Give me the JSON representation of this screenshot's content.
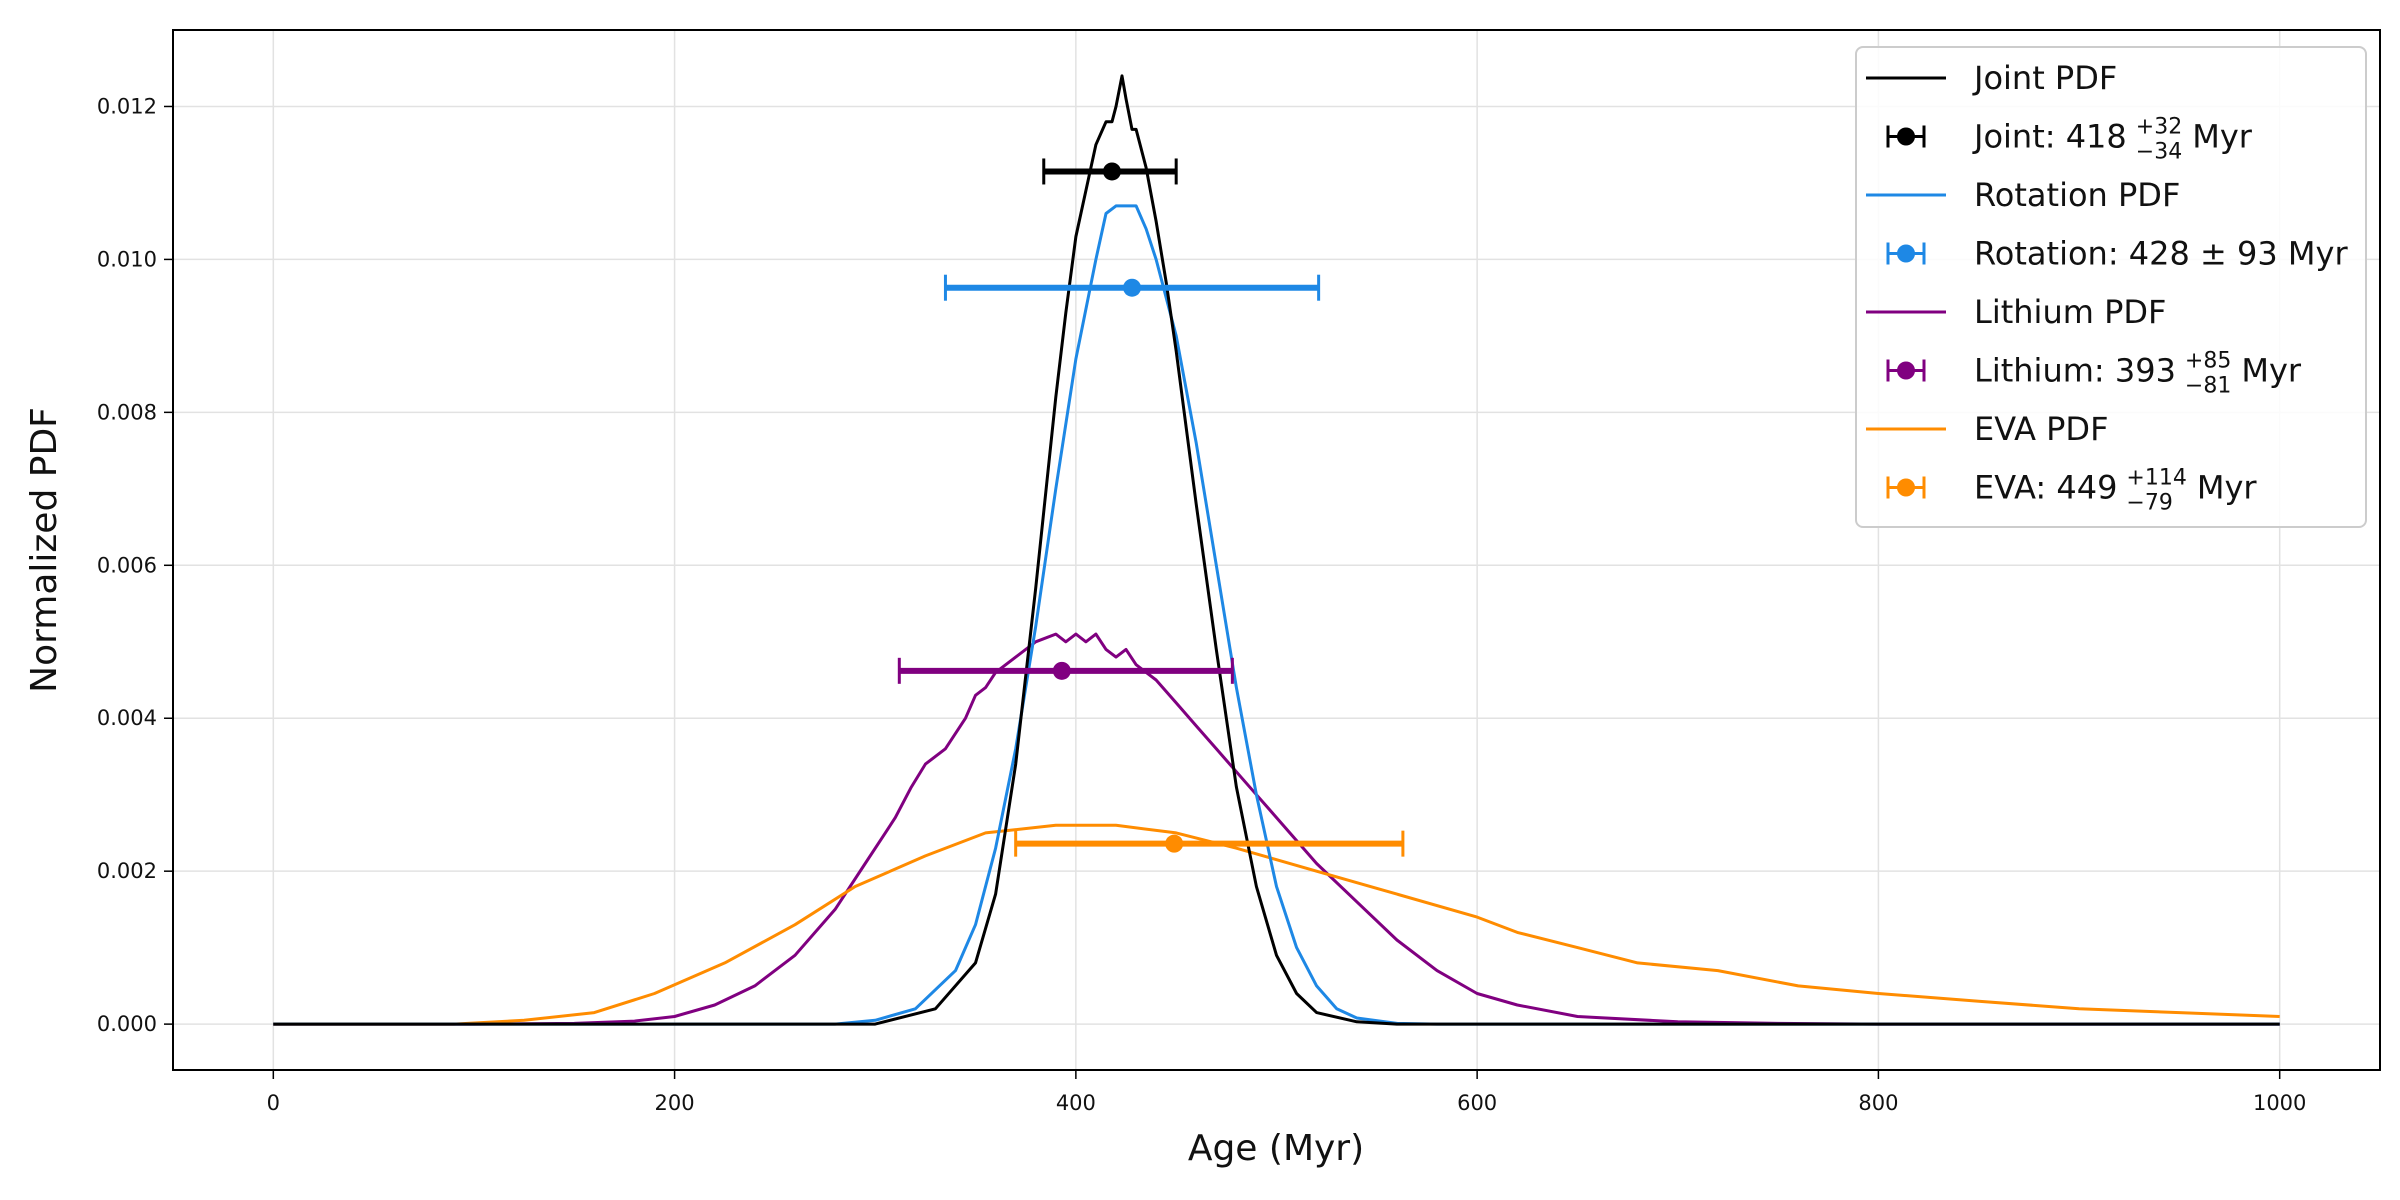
{
  "chart_data": {
    "type": "line",
    "title": "",
    "xlabel": "Age (Myr)",
    "ylabel": "Normalized PDF",
    "xlim": [
      -50,
      1050
    ],
    "ylim": [
      -0.0006,
      0.013
    ],
    "grid": true,
    "legend_position": "top-right",
    "xticks": [
      0,
      200,
      400,
      600,
      800,
      1000
    ],
    "xtick_labels": [
      "0",
      "200",
      "400",
      "600",
      "800",
      "1000"
    ],
    "yticks": [
      0.0,
      0.002,
      0.004,
      0.006,
      0.008,
      0.01,
      0.012
    ],
    "ytick_labels": [
      "0.000",
      "0.002",
      "0.004",
      "0.006",
      "0.008",
      "0.010",
      "0.012"
    ],
    "series": [
      {
        "name": "Joint PDF",
        "kind": "line",
        "color": "#000000",
        "x": [
          0,
          300,
          330,
          350,
          360,
          370,
          380,
          390,
          395,
          400,
          405,
          410,
          415,
          418,
          420,
          423,
          425,
          428,
          430,
          435,
          440,
          445,
          450,
          460,
          470,
          480,
          490,
          500,
          510,
          520,
          540,
          560,
          600,
          1000
        ],
        "y": [
          0.0,
          0.0,
          0.0002,
          0.0008,
          0.0017,
          0.0034,
          0.0057,
          0.0082,
          0.0093,
          0.0103,
          0.0109,
          0.0115,
          0.0118,
          0.0118,
          0.012,
          0.0124,
          0.0121,
          0.0117,
          0.0117,
          0.0112,
          0.0105,
          0.0097,
          0.0088,
          0.0068,
          0.0049,
          0.0031,
          0.0018,
          0.0009,
          0.0004,
          0.00015,
          3e-05,
          0.0,
          0.0,
          0.0
        ]
      },
      {
        "name": "Joint: 418 +32 −34 Myr",
        "kind": "errorbar",
        "color": "#000000",
        "label_main": "Joint: 418",
        "label_sup": "+32",
        "label_sub": "−34",
        "label_unit": "Myr",
        "center": 418,
        "err_plus": 32,
        "err_minus": 34,
        "y": 0.01115
      },
      {
        "name": "Rotation PDF",
        "kind": "line",
        "color": "#1e88e5",
        "x": [
          0,
          280,
          300,
          320,
          340,
          350,
          360,
          370,
          380,
          390,
          400,
          410,
          415,
          420,
          425,
          430,
          435,
          440,
          450,
          460,
          470,
          480,
          490,
          500,
          510,
          520,
          530,
          540,
          560,
          580,
          600,
          1000
        ],
        "y": [
          0.0,
          0.0,
          5e-05,
          0.0002,
          0.0007,
          0.0013,
          0.0023,
          0.0036,
          0.0052,
          0.007,
          0.0087,
          0.01,
          0.0106,
          0.0107,
          0.0107,
          0.0107,
          0.0104,
          0.01,
          0.009,
          0.0076,
          0.006,
          0.0044,
          0.003,
          0.0018,
          0.001,
          0.0005,
          0.0002,
          8e-05,
          1e-05,
          0.0,
          0.0,
          0.0
        ]
      },
      {
        "name": "Rotation: 428 ± 93 Myr",
        "kind": "errorbar",
        "color": "#1e88e5",
        "label_main": "Rotation: 428 ± 93 Myr",
        "label_sup": "",
        "label_sub": "",
        "label_unit": "",
        "center": 428,
        "err_plus": 93,
        "err_minus": 93,
        "y": 0.00963
      },
      {
        "name": "Lithium PDF",
        "kind": "line",
        "color": "#800080",
        "x": [
          0,
          100,
          150,
          180,
          200,
          220,
          240,
          260,
          280,
          295,
          305,
          310,
          318,
          325,
          335,
          345,
          350,
          355,
          360,
          370,
          380,
          390,
          395,
          400,
          405,
          410,
          415,
          420,
          425,
          430,
          440,
          450,
          460,
          470,
          480,
          490,
          500,
          520,
          540,
          560,
          580,
          600,
          620,
          650,
          700,
          750,
          800,
          1000
        ],
        "y": [
          0.0,
          0.0,
          1e-05,
          4e-05,
          0.0001,
          0.00025,
          0.0005,
          0.0009,
          0.0015,
          0.0021,
          0.0025,
          0.0027,
          0.0031,
          0.0034,
          0.0036,
          0.004,
          0.0043,
          0.0044,
          0.0046,
          0.0048,
          0.005,
          0.0051,
          0.005,
          0.0051,
          0.005,
          0.0051,
          0.0049,
          0.0048,
          0.0049,
          0.0047,
          0.0045,
          0.0042,
          0.0039,
          0.0036,
          0.0033,
          0.003,
          0.0027,
          0.0021,
          0.0016,
          0.0011,
          0.0007,
          0.0004,
          0.00025,
          0.0001,
          3e-05,
          1e-05,
          0.0,
          0.0
        ]
      },
      {
        "name": "Lithium: 393 +85 −81 Myr",
        "kind": "errorbar",
        "color": "#800080",
        "label_main": "Lithium: 393",
        "label_sup": "+85",
        "label_sub": "−81",
        "label_unit": "Myr",
        "center": 393,
        "err_plus": 85,
        "err_minus": 81,
        "y": 0.00462
      },
      {
        "name": "EVA PDF",
        "kind": "line",
        "color": "#ff8c00",
        "x": [
          0,
          90,
          125,
          160,
          190,
          225,
          260,
          290,
          325,
          355,
          390,
          420,
          450,
          480,
          520,
          560,
          600,
          620,
          650,
          680,
          720,
          760,
          800,
          850,
          900,
          950,
          1000
        ],
        "y": [
          0.0,
          0.0,
          5e-05,
          0.00015,
          0.0004,
          0.0008,
          0.0013,
          0.0018,
          0.0022,
          0.0025,
          0.0026,
          0.0026,
          0.0025,
          0.0023,
          0.002,
          0.0017,
          0.0014,
          0.0012,
          0.001,
          0.0008,
          0.0007,
          0.0005,
          0.0004,
          0.0003,
          0.0002,
          0.00015,
          0.0001
        ]
      },
      {
        "name": "EVA: 449 +114 −79 Myr",
        "kind": "errorbar",
        "color": "#ff8c00",
        "label_main": "EVA: 449",
        "label_sup": "+114",
        "label_sub": "−79",
        "label_unit": "Myr",
        "center": 449,
        "err_plus": 114,
        "err_minus": 79,
        "y": 0.00236
      }
    ]
  }
}
